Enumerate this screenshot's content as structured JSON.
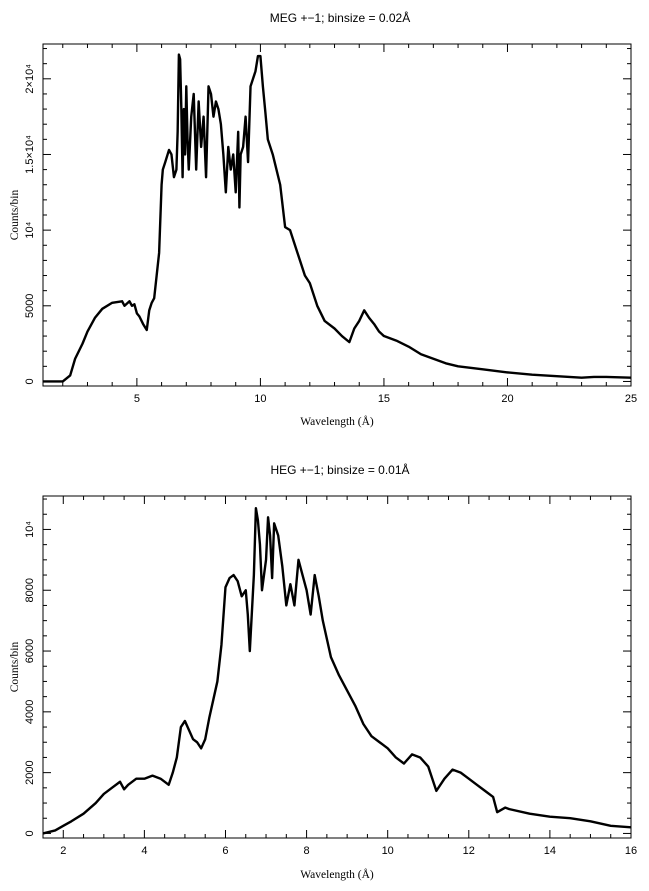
{
  "chart_data": [
    {
      "type": "line",
      "title": "MEG +−1; binsize = 0.02Å",
      "xlabel": "Wavelength (Å)",
      "ylabel": "Counts/bin",
      "xlim": [
        1.2,
        25
      ],
      "ylim": [
        -300,
        22300
      ],
      "x_ticks": [
        {
          "v": 5,
          "label": "5"
        },
        {
          "v": 10,
          "label": "10"
        },
        {
          "v": 15,
          "label": "15"
        },
        {
          "v": 20,
          "label": "20"
        },
        {
          "v": 25,
          "label": "25"
        }
      ],
      "y_ticks": [
        {
          "v": 0,
          "label": "0"
        },
        {
          "v": 5000,
          "label": "5000"
        },
        {
          "v": 10000,
          "label": "10⁴"
        },
        {
          "v": 15000,
          "label": "1.5×10⁴"
        },
        {
          "v": 20000,
          "label": "2×10⁴"
        }
      ],
      "grid": false,
      "series": [
        {
          "x": [
            1.2,
            2.0,
            2.3,
            2.5,
            2.8,
            3.0,
            3.3,
            3.6,
            4.0,
            4.4,
            4.5,
            4.7,
            4.8,
            4.9,
            5.0,
            5.1,
            5.25,
            5.4,
            5.5,
            5.6,
            5.7,
            5.8,
            5.9,
            6.0,
            6.05,
            6.15,
            6.3,
            6.4,
            6.5,
            6.6,
            6.65,
            6.7,
            6.75,
            6.8,
            6.85,
            6.9,
            6.95,
            7.0,
            7.05,
            7.1,
            7.2,
            7.3,
            7.4,
            7.5,
            7.6,
            7.7,
            7.8,
            7.9,
            8.0,
            8.1,
            8.2,
            8.3,
            8.4,
            8.5,
            8.6,
            8.7,
            8.8,
            8.9,
            9.0,
            9.1,
            9.15,
            9.2,
            9.3,
            9.4,
            9.5,
            9.6,
            9.8,
            9.9,
            10.0,
            10.1,
            10.2,
            10.3,
            10.5,
            10.8,
            11.0,
            11.2,
            11.5,
            11.8,
            12.0,
            12.3,
            12.6,
            13.0,
            13.3,
            13.6,
            13.8,
            14.0,
            14.2,
            14.4,
            14.6,
            14.8,
            15.0,
            15.5,
            16.0,
            16.5,
            17.0,
            17.5,
            18.0,
            18.5,
            19.0,
            20.0,
            21.0,
            22.0,
            23.0,
            23.5,
            24.0,
            25.0
          ],
          "y": [
            0,
            0,
            400,
            1500,
            2500,
            3300,
            4200,
            4800,
            5200,
            5300,
            5000,
            5300,
            5000,
            5100,
            4500,
            4300,
            3800,
            3400,
            4700,
            5200,
            5500,
            7000,
            8500,
            13000,
            14000,
            14500,
            15300,
            15000,
            13500,
            14000,
            16500,
            21600,
            21300,
            18000,
            13500,
            18000,
            15000,
            19500,
            16000,
            14000,
            17500,
            19000,
            14000,
            18500,
            15500,
            17500,
            13500,
            19500,
            19000,
            17500,
            18500,
            18000,
            17000,
            15000,
            12500,
            15500,
            14000,
            15000,
            12500,
            16500,
            11500,
            15000,
            15500,
            17500,
            14500,
            19500,
            20500,
            21500,
            21500,
            19500,
            17800,
            16000,
            15000,
            13000,
            10200,
            10000,
            8500,
            7000,
            6500,
            5000,
            4000,
            3500,
            3000,
            2600,
            3500,
            4000,
            4700,
            4200,
            3800,
            3300,
            3000,
            2700,
            2300,
            1800,
            1500,
            1200,
            1000,
            900,
            800,
            600,
            450,
            350,
            250,
            300,
            300,
            250
          ]
        }
      ]
    },
    {
      "type": "line",
      "title": "HEG +−1; binsize = 0.01Å",
      "xlabel": "Wavelength (Å)",
      "ylabel": "Counts/bin",
      "xlim": [
        1.5,
        16
      ],
      "ylim": [
        -150,
        11100
      ],
      "x_ticks": [
        {
          "v": 2,
          "label": "2"
        },
        {
          "v": 4,
          "label": "4"
        },
        {
          "v": 6,
          "label": "6"
        },
        {
          "v": 8,
          "label": "8"
        },
        {
          "v": 10,
          "label": "10"
        },
        {
          "v": 12,
          "label": "12"
        },
        {
          "v": 14,
          "label": "14"
        },
        {
          "v": 16,
          "label": "16"
        }
      ],
      "y_ticks": [
        {
          "v": 0,
          "label": "0"
        },
        {
          "v": 2000,
          "label": "2000"
        },
        {
          "v": 4000,
          "label": "4000"
        },
        {
          "v": 6000,
          "label": "6000"
        },
        {
          "v": 8000,
          "label": "8000"
        },
        {
          "v": 10000,
          "label": "10⁴"
        }
      ],
      "grid": false,
      "series": [
        {
          "x": [
            1.5,
            1.8,
            2.0,
            2.2,
            2.5,
            2.8,
            3.0,
            3.2,
            3.4,
            3.5,
            3.6,
            3.8,
            4.0,
            4.2,
            4.4,
            4.6,
            4.7,
            4.8,
            4.9,
            5.0,
            5.1,
            5.2,
            5.3,
            5.4,
            5.5,
            5.6,
            5.7,
            5.8,
            5.9,
            6.0,
            6.1,
            6.2,
            6.3,
            6.4,
            6.5,
            6.55,
            6.6,
            6.7,
            6.75,
            6.8,
            6.85,
            6.9,
            7.0,
            7.05,
            7.1,
            7.15,
            7.2,
            7.3,
            7.4,
            7.5,
            7.6,
            7.7,
            7.8,
            7.9,
            8.0,
            8.1,
            8.2,
            8.3,
            8.4,
            8.5,
            8.6,
            8.8,
            9.0,
            9.2,
            9.4,
            9.6,
            9.8,
            10.0,
            10.2,
            10.4,
            10.6,
            10.8,
            11.0,
            11.1,
            11.2,
            11.4,
            11.6,
            11.8,
            12.0,
            12.2,
            12.4,
            12.6,
            12.7,
            12.9,
            13.0,
            13.5,
            14.0,
            14.5,
            15.0,
            15.5,
            16.0
          ],
          "y": [
            0,
            100,
            250,
            400,
            650,
            1000,
            1300,
            1500,
            1700,
            1450,
            1600,
            1800,
            1800,
            1900,
            1800,
            1600,
            2000,
            2500,
            3500,
            3700,
            3400,
            3100,
            3000,
            2800,
            3100,
            3800,
            4400,
            5000,
            6200,
            8100,
            8400,
            8500,
            8300,
            7800,
            8000,
            7200,
            6000,
            8500,
            10700,
            10300,
            9500,
            8000,
            9000,
            10400,
            9800,
            8400,
            10200,
            9800,
            8800,
            7500,
            8200,
            7500,
            9000,
            8500,
            8000,
            7200,
            8500,
            7800,
            7000,
            6400,
            5800,
            5200,
            4700,
            4200,
            3600,
            3200,
            3000,
            2800,
            2500,
            2300,
            2600,
            2500,
            2200,
            1800,
            1400,
            1800,
            2100,
            2000,
            1800,
            1600,
            1400,
            1200,
            700,
            850,
            800,
            650,
            550,
            500,
            400,
            250,
            200
          ]
        }
      ]
    }
  ]
}
